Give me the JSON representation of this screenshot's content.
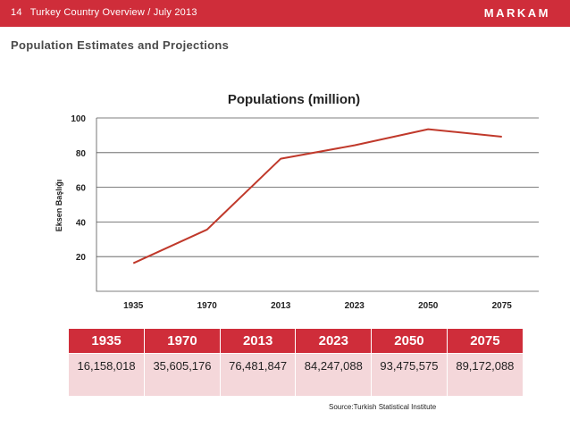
{
  "header": {
    "page_number": "14",
    "title": "Turkey Country Overview / July 2013",
    "brand": "MARKAM"
  },
  "heading": "Population Estimates and Projections",
  "colors": {
    "accent": "#cf2d3a",
    "line": "#c0392b",
    "table_row": "#f4d7da"
  },
  "chart_data": {
    "type": "line",
    "title": "Populations (million)",
    "ylabel": "Eksen Başlığı",
    "xlabel": "",
    "categories": [
      "1935",
      "1970",
      "2013",
      "2023",
      "2050",
      "2075"
    ],
    "series": [
      {
        "values": [
          16.2,
          35.6,
          76.5,
          84.2,
          93.5,
          89.2
        ]
      }
    ],
    "ylim": [
      0,
      100
    ],
    "yticks": [
      20,
      40,
      60,
      80,
      100
    ],
    "grid": true,
    "legend": "none"
  },
  "table": {
    "headers": [
      "1935",
      "1970",
      "2013",
      "2023",
      "2050",
      "2075"
    ],
    "values": [
      "16,158,018",
      "35,605,176",
      "76,481,847",
      "84,247,088",
      "93,475,575",
      "89,172,088"
    ]
  },
  "source": "Source:Turkish Statistical Institute"
}
